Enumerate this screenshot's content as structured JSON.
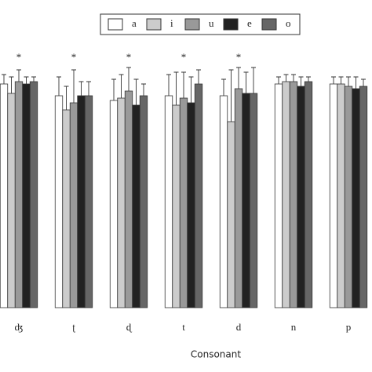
{
  "chart_data": {
    "type": "bar",
    "x_label": "Consonant",
    "categories": [
      "ʤ",
      "ʈ",
      "ɖ",
      "t",
      "d",
      "n",
      "p"
    ],
    "significance": [
      "*",
      "*",
      "*",
      "*",
      "*",
      null,
      null
    ],
    "ylim": [
      0,
      100
    ],
    "series": [
      {
        "name": "a",
        "color": "#ffffff",
        "values": [
          95,
          90,
          88,
          90,
          90,
          95,
          95
        ],
        "errors": [
          4,
          8,
          9,
          9,
          7,
          3,
          3
        ]
      },
      {
        "name": "i",
        "color": "#cccccc",
        "values": [
          91,
          84,
          89,
          86,
          79,
          96,
          95
        ],
        "errors": [
          7,
          10,
          10,
          14,
          22,
          3,
          3
        ]
      },
      {
        "name": "u",
        "color": "#999999",
        "values": [
          96,
          87,
          92,
          89,
          93,
          96,
          94
        ],
        "errors": [
          5,
          14,
          10,
          11,
          9,
          3,
          4
        ]
      },
      {
        "name": "e",
        "color": "#222222",
        "values": [
          95,
          90,
          86,
          87,
          91,
          94,
          93
        ],
        "errors": [
          3,
          6,
          11,
          11,
          9,
          4,
          5
        ]
      },
      {
        "name": "o",
        "color": "#666666",
        "values": [
          96,
          90,
          90,
          95,
          91,
          96,
          94
        ],
        "errors": [
          2,
          6,
          5,
          6,
          11,
          2,
          3
        ]
      }
    ]
  }
}
